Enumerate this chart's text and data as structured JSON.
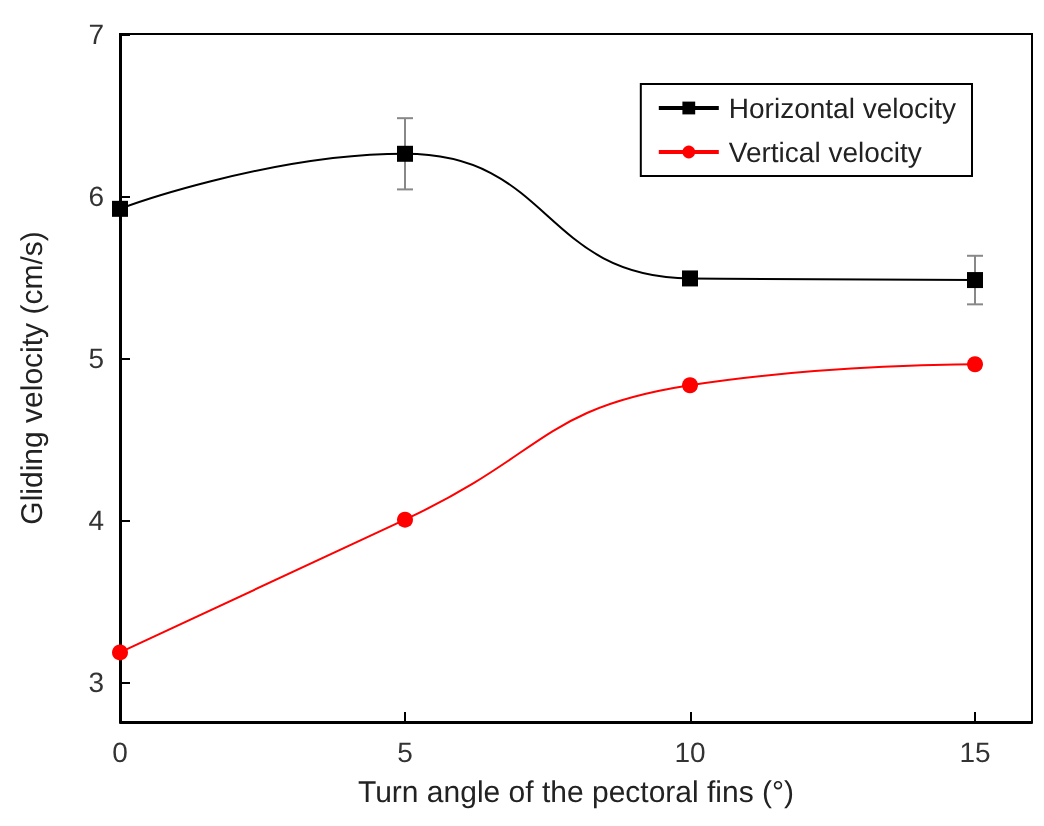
{
  "chart_data": {
    "type": "line",
    "xlabel": "Turn angle of the pectoral fins (°)",
    "ylabel": "Gliding velocity (cm/s)",
    "x": [
      0,
      5,
      10,
      15
    ],
    "xlim": [
      0,
      16
    ],
    "xticks": [
      0,
      5,
      10,
      15
    ],
    "ylim": [
      2.75,
      7
    ],
    "yticks": [
      3,
      4,
      5,
      6,
      7
    ],
    "series": [
      {
        "name": "Horizontal velocity",
        "color": "#000000",
        "marker": "square",
        "values": [
          5.92,
          6.26,
          5.49,
          5.48
        ],
        "errors": [
          null,
          0.22,
          null,
          0.15
        ]
      },
      {
        "name": "Vertical velocity",
        "color": "#ff0000",
        "marker": "circle",
        "values": [
          3.18,
          4.0,
          4.83,
          4.96
        ]
      }
    ],
    "grid": false,
    "legend": "top right"
  }
}
